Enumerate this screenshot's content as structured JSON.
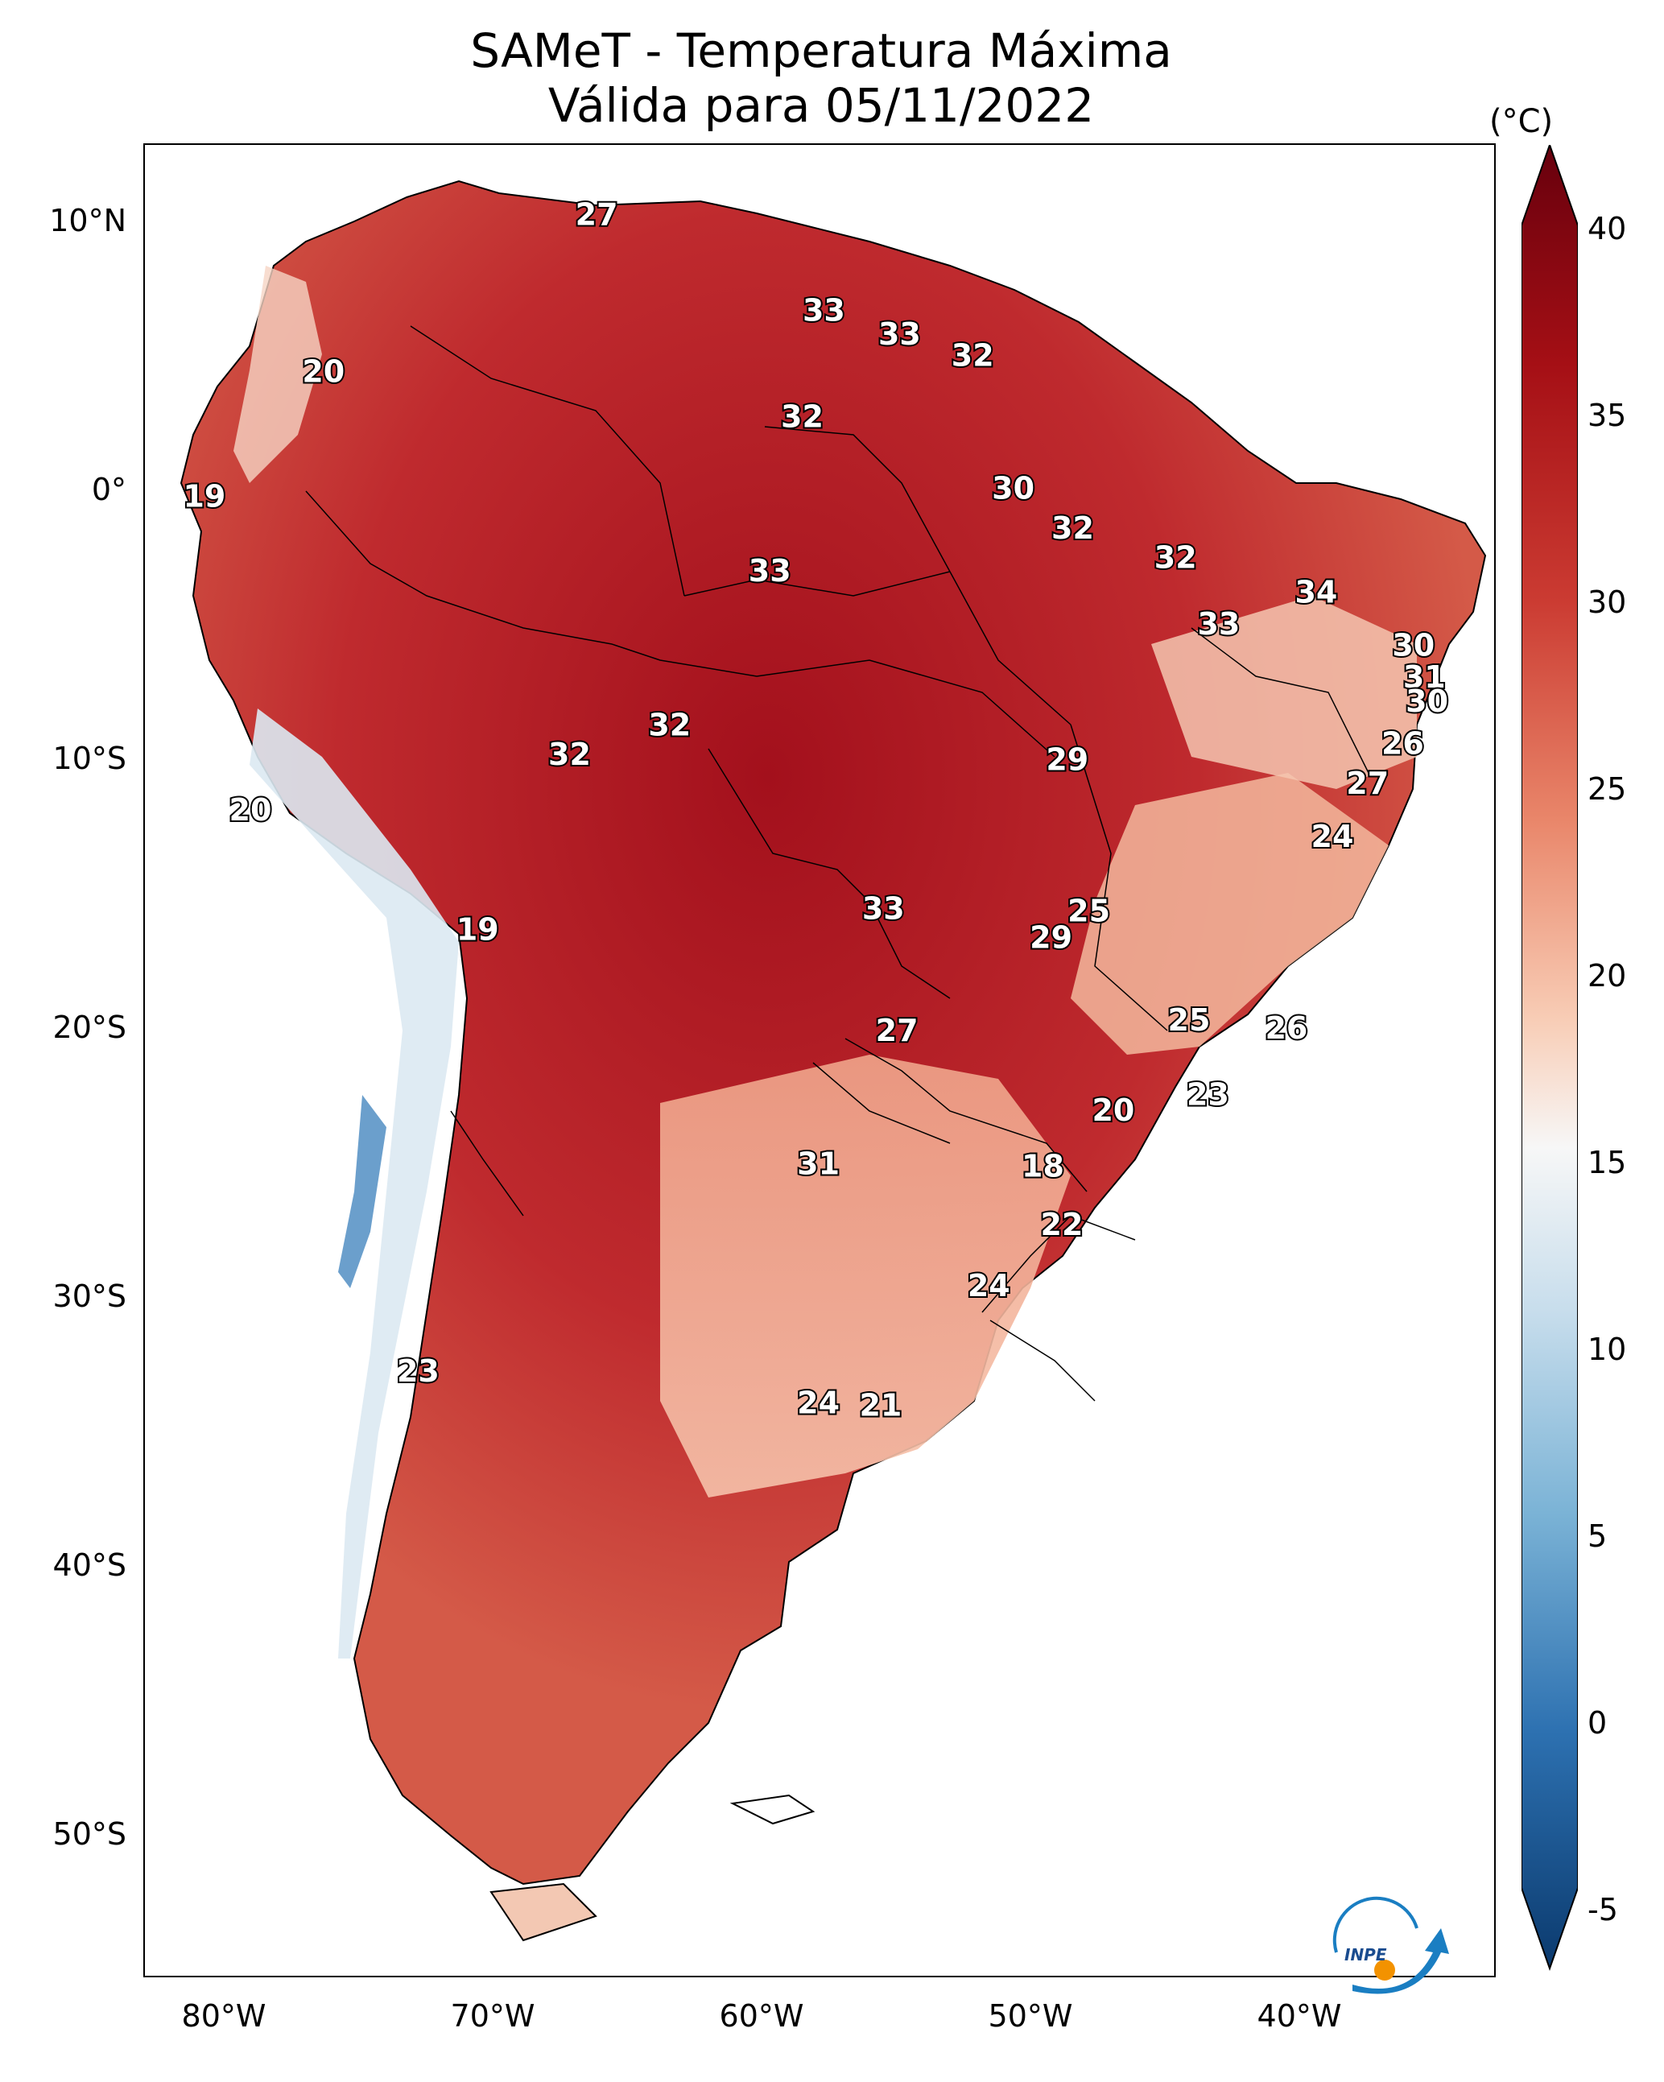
{
  "title_line1": "SAMeT - Temperatura Máxima",
  "title_line2": "Válida para 05/11/2022",
  "colorbar": {
    "unit": "(°C)",
    "ticks": [
      "40",
      "35",
      "30",
      "25",
      "20",
      "15",
      "10",
      "5",
      "0",
      "-5"
    ],
    "range": [
      -5,
      40
    ],
    "colors": {
      "cold": "#0b3a6e",
      "mid": "#f7f7f7",
      "warm": "#67000d"
    }
  },
  "axes": {
    "lat_ticks": [
      "10°N",
      "0°",
      "10°S",
      "20°S",
      "30°S",
      "40°S",
      "50°S"
    ],
    "lon_ticks": [
      "80°W",
      "70°W",
      "60°W",
      "50°W",
      "40°W"
    ],
    "lat_range": [
      -56,
      13
    ],
    "lon_range": [
      -83,
      -33
    ]
  },
  "logo_text": "INPE",
  "labels": [
    {
      "text": "27",
      "lon": -66.3,
      "lat": 10.3
    },
    {
      "text": "33",
      "lon": -57.9,
      "lat": 6.7
    },
    {
      "text": "33",
      "lon": -55.1,
      "lat": 5.8
    },
    {
      "text": "32",
      "lon": -52.4,
      "lat": 5.0
    },
    {
      "text": "20",
      "lon": -76.4,
      "lat": 4.4
    },
    {
      "text": "32",
      "lon": -58.7,
      "lat": 2.7
    },
    {
      "text": "30",
      "lon": -50.9,
      "lat": 0.0
    },
    {
      "text": "19",
      "lon": -80.8,
      "lat": -0.3
    },
    {
      "text": "32",
      "lon": -48.7,
      "lat": -1.5
    },
    {
      "text": "32",
      "lon": -44.9,
      "lat": -2.6
    },
    {
      "text": "33",
      "lon": -59.9,
      "lat": -3.1
    },
    {
      "text": "34",
      "lon": -39.7,
      "lat": -3.9
    },
    {
      "text": "33",
      "lon": -43.3,
      "lat": -5.1
    },
    {
      "text": "30",
      "lon": -36.1,
      "lat": -5.9
    },
    {
      "text": "31",
      "lon": -35.7,
      "lat": -7.1
    },
    {
      "text": "30",
      "lon": -35.6,
      "lat": -8.0
    },
    {
      "text": "32",
      "lon": -63.6,
      "lat": -8.9
    },
    {
      "text": "26",
      "lon": -36.5,
      "lat": -9.6
    },
    {
      "text": "32",
      "lon": -67.3,
      "lat": -10.0
    },
    {
      "text": "29",
      "lon": -48.9,
      "lat": -10.2
    },
    {
      "text": "27",
      "lon": -37.8,
      "lat": -11.1
    },
    {
      "text": "20",
      "lon": -79.1,
      "lat": -12.1
    },
    {
      "text": "24",
      "lon": -39.1,
      "lat": -13.1
    },
    {
      "text": "33",
      "lon": -55.7,
      "lat": -15.8
    },
    {
      "text": "25",
      "lon": -48.1,
      "lat": -15.9
    },
    {
      "text": "29",
      "lon": -49.5,
      "lat": -16.9
    },
    {
      "text": "19",
      "lon": -70.7,
      "lat": -16.6
    },
    {
      "text": "25",
      "lon": -44.4,
      "lat": -20.0
    },
    {
      "text": "26",
      "lon": -40.8,
      "lat": -20.3
    },
    {
      "text": "27",
      "lon": -55.2,
      "lat": -20.4
    },
    {
      "text": "23",
      "lon": -43.7,
      "lat": -22.8
    },
    {
      "text": "20",
      "lon": -47.2,
      "lat": -23.4
    },
    {
      "text": "31",
      "lon": -58.1,
      "lat": -25.4
    },
    {
      "text": "18",
      "lon": -49.8,
      "lat": -25.5
    },
    {
      "text": "22",
      "lon": -49.1,
      "lat": -27.7
    },
    {
      "text": "24",
      "lon": -51.8,
      "lat": -30.0
    },
    {
      "text": "23",
      "lon": -72.9,
      "lat": -33.2
    },
    {
      "text": "24",
      "lon": -58.1,
      "lat": -34.4
    },
    {
      "text": "21",
      "lon": -55.8,
      "lat": -34.5
    }
  ]
}
